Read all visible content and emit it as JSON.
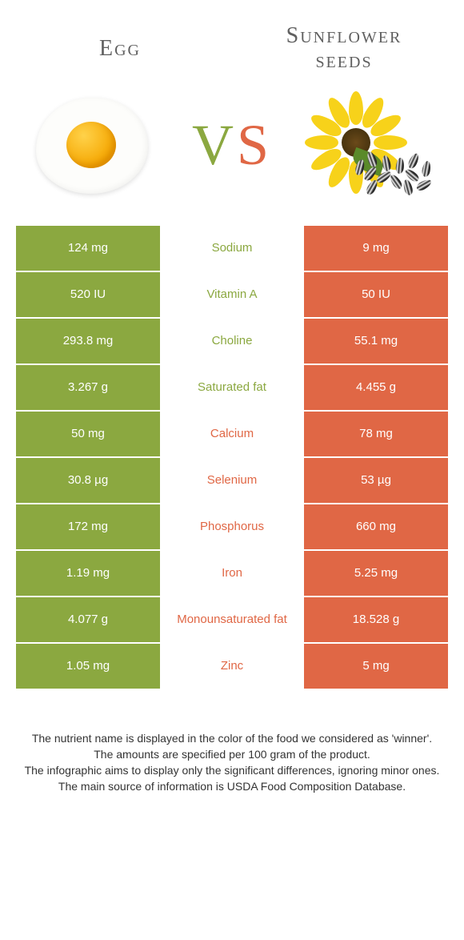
{
  "colors": {
    "green": "#8ba840",
    "orange": "#e06745",
    "title_text": "#606060",
    "footer_text": "#333333",
    "background": "#ffffff"
  },
  "fonts": {
    "title_size": 28,
    "vs_size": 72,
    "cell_size": 15,
    "footer_size": 14
  },
  "header": {
    "left_title": "Egg",
    "right_title": "Sunflower seeds"
  },
  "vs": {
    "v": "V",
    "s": "S"
  },
  "rows": [
    {
      "left": "124 mg",
      "label": "Sodium",
      "right": "9 mg",
      "winner": "left"
    },
    {
      "left": "520 IU",
      "label": "Vitamin A",
      "right": "50 IU",
      "winner": "left"
    },
    {
      "left": "293.8 mg",
      "label": "Choline",
      "right": "55.1 mg",
      "winner": "left"
    },
    {
      "left": "3.267 g",
      "label": "Saturated fat",
      "right": "4.455 g",
      "winner": "left"
    },
    {
      "left": "50 mg",
      "label": "Calcium",
      "right": "78 mg",
      "winner": "right"
    },
    {
      "left": "30.8 µg",
      "label": "Selenium",
      "right": "53 µg",
      "winner": "right"
    },
    {
      "left": "172 mg",
      "label": "Phosphorus",
      "right": "660 mg",
      "winner": "right"
    },
    {
      "left": "1.19 mg",
      "label": "Iron",
      "right": "5.25 mg",
      "winner": "right"
    },
    {
      "left": "4.077 g",
      "label": "Monounsaturated fat",
      "right": "18.528 g",
      "winner": "right"
    },
    {
      "left": "1.05 mg",
      "label": "Zinc",
      "right": "5 mg",
      "winner": "right"
    }
  ],
  "footer": {
    "line1": "The nutrient name is displayed in the color of the food we considered as 'winner'.",
    "line2": "The amounts are specified per 100 gram of the product.",
    "line3": "The infographic aims to display only the significant differences, ignoring minor ones.",
    "line4": "The main source of information is USDA Food Composition Database."
  }
}
